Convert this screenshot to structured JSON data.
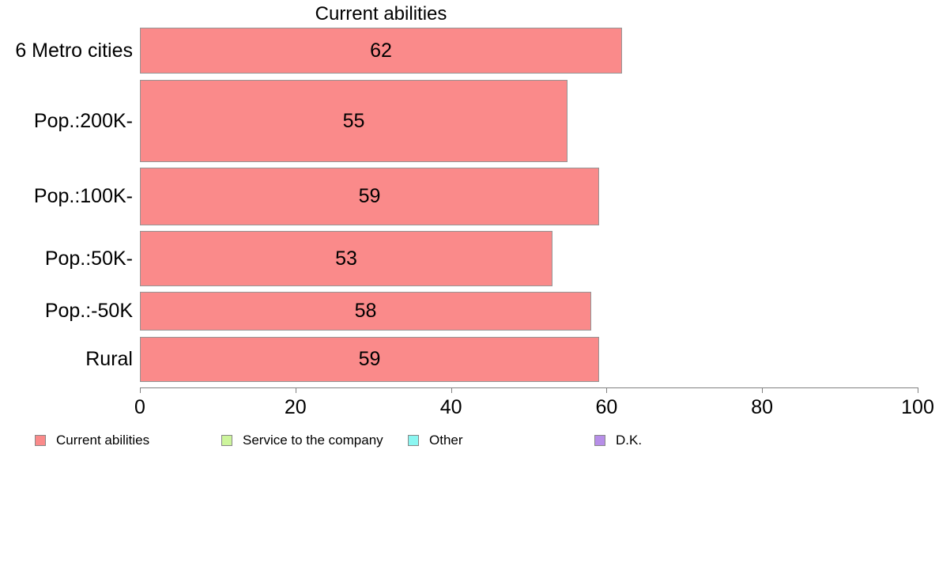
{
  "chart_data": {
    "type": "bar",
    "orientation": "horizontal",
    "title": "Current abilities",
    "categories": [
      "6 Metro cities",
      "Pop.:200K-",
      "Pop.:100K-",
      "Pop.:50K-",
      "Pop.:-50K",
      "Rural"
    ],
    "values": [
      62,
      55,
      59,
      53,
      58,
      59
    ],
    "xlabel": "",
    "ylabel": "",
    "xlim": [
      0,
      100
    ],
    "x_ticks": [
      "0",
      "20",
      "40",
      "60",
      "80",
      "100"
    ],
    "grid": false,
    "value_labels_inside_bars": true,
    "bar_color": "#FA8A8A",
    "bar_border_color": "#959595",
    "axis_color": "#808080",
    "text_color": "#000000",
    "legend_position": "bottom",
    "legend": [
      {
        "label": "Current abilities",
        "color": "#FA8A8A"
      },
      {
        "label": "Service to the company",
        "color": "#CDF59C"
      },
      {
        "label": "Other",
        "color": "#8BF6F1"
      },
      {
        "label": "D.K.",
        "color": "#B78EE8"
      }
    ],
    "row_layout_hint": {
      "tops": [
        35,
        101,
        212,
        292,
        369,
        426
      ],
      "heights": [
        58,
        104,
        73,
        70,
        49,
        57
      ]
    }
  }
}
